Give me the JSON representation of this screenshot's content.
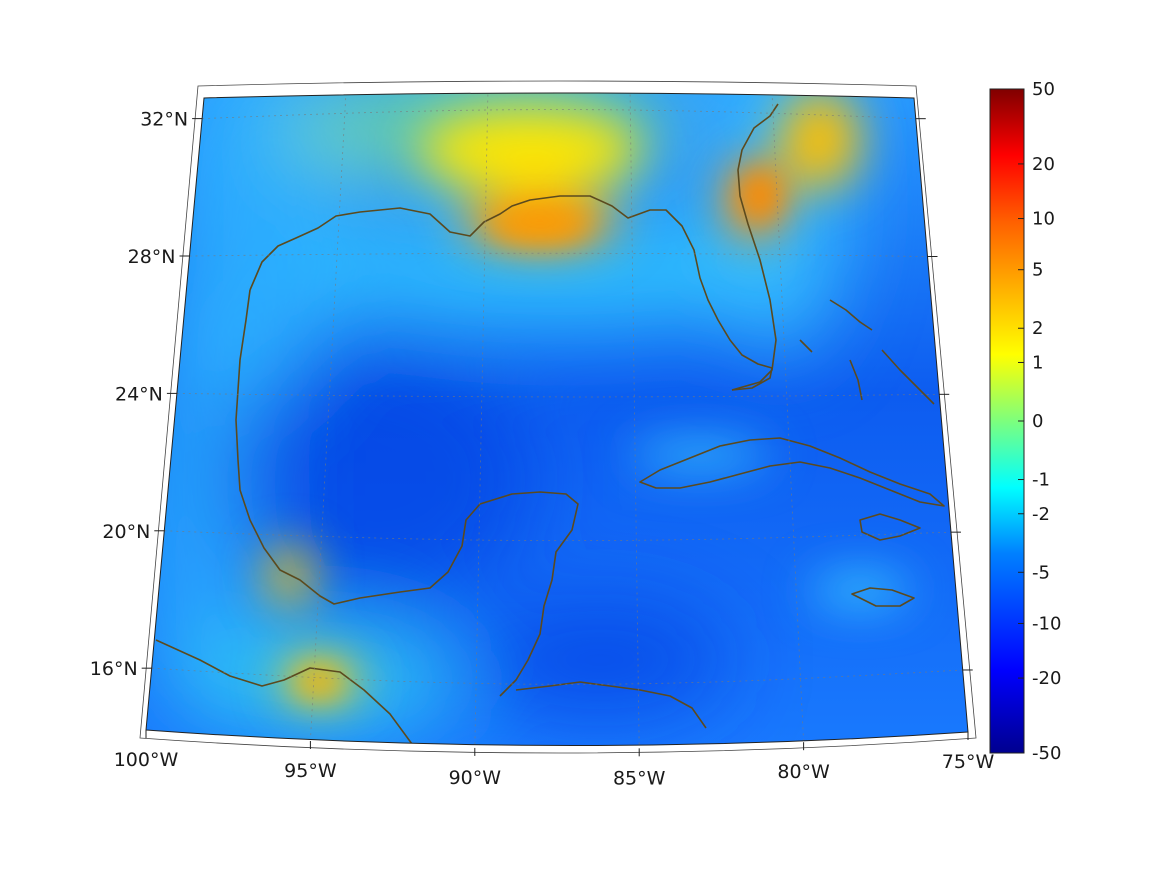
{
  "map": {
    "region": "Gulf of Mexico",
    "projection": "conic",
    "lon_range": [
      -100,
      -75
    ],
    "lat_range": [
      14,
      32
    ],
    "lon_ticks": [
      {
        "value": -100,
        "label": "100°W"
      },
      {
        "value": -95,
        "label": "95°W"
      },
      {
        "value": -90,
        "label": "90°W"
      },
      {
        "value": -85,
        "label": "85°W"
      },
      {
        "value": -80,
        "label": "80°W"
      },
      {
        "value": -75,
        "label": "75°W"
      }
    ],
    "lat_ticks": [
      {
        "value": 16,
        "label": "16°N"
      },
      {
        "value": 20,
        "label": "20°N"
      },
      {
        "value": 24,
        "label": "24°N"
      },
      {
        "value": 28,
        "label": "28°N"
      },
      {
        "value": 32,
        "label": "32°N"
      }
    ],
    "coastline_color": "#5b4a1e",
    "field_hotspots": [
      {
        "area": "Louisiana / Mississippi coast",
        "lon": -89,
        "lat": 29.7,
        "level": "≈2–5"
      },
      {
        "area": "NE Florida / Georgia",
        "lon": -81.5,
        "lat": 29.5,
        "level": "≈5"
      },
      {
        "area": "Atlantic off Carolinas",
        "lon": -79.5,
        "lat": 31.5,
        "level": "≈2–5"
      },
      {
        "area": "Veracruz coast",
        "lon": -95.8,
        "lat": 18.9,
        "level": "≈2"
      },
      {
        "area": "Tehuantepec",
        "lon": -94.6,
        "lat": 16.0,
        "level": "≈2"
      }
    ]
  },
  "colorbar": {
    "scale": "symmetric-log",
    "colormap": [
      "#00008f",
      "#0000ff",
      "#0080ff",
      "#00ffff",
      "#80ff80",
      "#ffff00",
      "#ff8000",
      "#ff0000",
      "#800000"
    ],
    "ticks": [
      {
        "value": 50,
        "label": "50"
      },
      {
        "value": 20,
        "label": "20"
      },
      {
        "value": 10,
        "label": "10"
      },
      {
        "value": 5,
        "label": "5"
      },
      {
        "value": 2,
        "label": "2"
      },
      {
        "value": 1,
        "label": "1"
      },
      {
        "value": 0,
        "label": "0"
      },
      {
        "value": -1,
        "label": "-1"
      },
      {
        "value": -2,
        "label": "-2"
      },
      {
        "value": -5,
        "label": "-5"
      },
      {
        "value": -10,
        "label": "-10"
      },
      {
        "value": -20,
        "label": "-20"
      },
      {
        "value": -50,
        "label": "-50"
      }
    ]
  }
}
